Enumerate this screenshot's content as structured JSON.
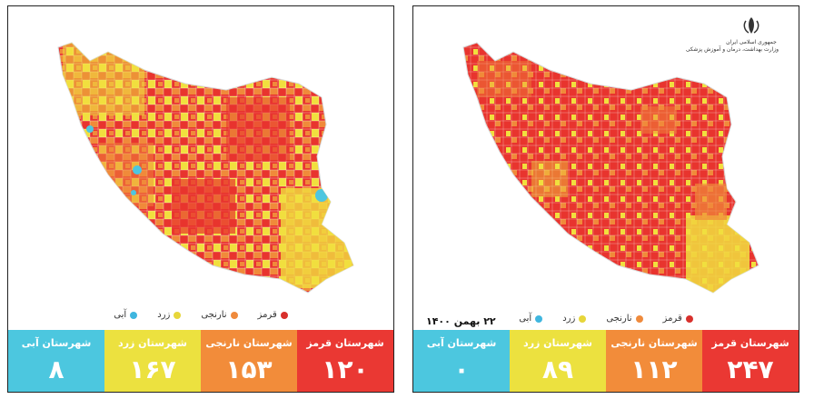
{
  "colors": {
    "red": "#e8342e",
    "orange": "#f08a3a",
    "yellow": "#f1df3e",
    "blue": "#4ec6e0"
  },
  "legend": [
    {
      "label": "قرمز",
      "color": "#d8302c"
    },
    {
      "label": "نارنجی",
      "color": "#ef8a3c"
    },
    {
      "label": "زرد",
      "color": "#e7d63a"
    },
    {
      "label": "آبی",
      "color": "#3fb6df"
    }
  ],
  "left": {
    "counts": [
      {
        "label": "شهرستان قرمز",
        "value": "۱۲۰",
        "color": "#ea3833"
      },
      {
        "label": "شهرستان نارنجی",
        "value": "۱۵۳",
        "color": "#f28c3a"
      },
      {
        "label": "شهرستان زرد",
        "value": "۱۶۷",
        "color": "#ece13f"
      },
      {
        "label": "شهرستان آبی",
        "value": "۸",
        "color": "#4cc7df"
      }
    ],
    "map_icon": "iran-map-county-choropleth"
  },
  "right": {
    "date": "۲۲ بهمن ۱۴۰۰",
    "emblem_line1": "جمهوری اسلامی ایران",
    "emblem_line2": "وزارت بهداشت، درمان و آموزش پزشکی",
    "counts": [
      {
        "label": "شهرستان قرمز",
        "value": "۲۴۷",
        "color": "#ea3833"
      },
      {
        "label": "شهرستان نارنجی",
        "value": "۱۱۲",
        "color": "#f28c3a"
      },
      {
        "label": "شهرستان زرد",
        "value": "۸۹",
        "color": "#ece13f"
      },
      {
        "label": "شهرستان آبی",
        "value": "۰",
        "color": "#4cc7df"
      }
    ],
    "map_icon": "iran-map-county-choropleth"
  }
}
